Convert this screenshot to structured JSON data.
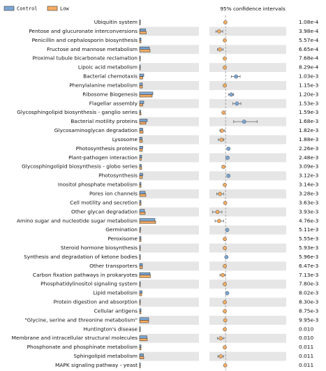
{
  "chart_data": {
    "type": "extended_error_bar",
    "title": "95% confidence intervals",
    "categories": [
      "Ubiquitin system",
      "Pentose and glucuronate interconversions",
      "Penicillin and cephalosporin biosynthesis",
      "Fructose and mannose metabolism",
      "Proximal tubule bicarbonate reclamation",
      "Lipoic acid metabolism",
      "Bacterial chemotaxis",
      "Phenylalanine metabolism",
      "Ribosome Biogenesis",
      "Flagellar assembly",
      "Glycosphingolipid biosynthesis - ganglio series",
      "Bacterial motility proteins",
      "Glycosaminoglycan degradation",
      "Lysosome",
      "Photosynthesis proteins",
      "Plant-pathogen interaction",
      "Glycosphingolipid biosynthesis - globo series",
      "Photosynthesis",
      "Inositol phosphate metabolism",
      "Pores ion channels",
      "Cell motility and secretion",
      "Other glycan degradation",
      "Amino sugar and nucleotide sugar metabolism",
      "Germination",
      "Peroxisome",
      "Steroid hormone biosynthesis",
      "Synthesis and degradation of ketone bodies",
      "Other transporters",
      "Carbon fixation pathways in prokaryotes",
      "Phosphatidylinositol signaling system",
      "Lipid metabolism",
      "Protein digestion and absorption",
      "Cellular antigens",
      "\"Glycine, serine and threonine metabolism\"",
      "Huntington's disease",
      "Membrane and intracellular structural molecules",
      "Phosphonate and phosphinate metabolism",
      "Sphingolipid metabolism",
      "MAPK signaling pathway - yeast"
    ],
    "series": [
      {
        "name": "Control",
        "color": "#7ba7d6",
        "values": [
          0.1,
          0.85,
          0.2,
          1.4,
          0.1,
          0.1,
          0.6,
          0.4,
          1.9,
          0.6,
          0.15,
          1.1,
          0.45,
          0.35,
          0.45,
          0.3,
          0.25,
          0.45,
          0.2,
          0.8,
          0.2,
          0.7,
          2.2,
          0.15,
          0.2,
          0.1,
          0.1,
          0.4,
          1.5,
          0.1,
          0.35,
          0.1,
          0.2,
          1.3,
          0.1,
          1.05,
          0.2,
          0.55,
          0.1
        ]
      },
      {
        "name": "Low",
        "color": "#f5ad63",
        "values": [
          0.1,
          0.95,
          0.2,
          1.5,
          0.1,
          0.1,
          0.45,
          0.4,
          1.8,
          0.45,
          0.2,
          0.9,
          0.5,
          0.4,
          0.4,
          0.25,
          0.3,
          0.4,
          0.2,
          0.9,
          0.2,
          0.8,
          2.3,
          0.1,
          0.2,
          0.1,
          0.1,
          0.4,
          1.55,
          0.1,
          0.3,
          0.1,
          0.2,
          1.3,
          0.1,
          1.1,
          0.2,
          0.6,
          0.1
        ]
      }
    ],
    "xlim": [
      0,
      8.5
    ],
    "difference": {
      "values": [
        -0.003,
        -0.08,
        -0.01,
        -0.07,
        -0.01,
        -0.01,
        0.13,
        -0.01,
        0.07,
        0.14,
        -0.025,
        0.23,
        -0.045,
        -0.05,
        0.035,
        0.025,
        -0.025,
        0.035,
        -0.01,
        -0.07,
        -0.005,
        -0.1,
        -0.08,
        0.02,
        -0.01,
        -0.01,
        0.01,
        -0.01,
        -0.035,
        -0.01,
        0.02,
        -0.01,
        -0.01,
        -0.005,
        -0.01,
        -0.06,
        -0.01,
        -0.06,
        -0.005
      ],
      "ci_low": [
        -0.008,
        -0.12,
        -0.015,
        -0.1,
        -0.015,
        -0.015,
        0.07,
        -0.015,
        0.035,
        0.09,
        -0.04,
        0.1,
        -0.07,
        -0.09,
        0.02,
        0.015,
        -0.045,
        0.02,
        -0.015,
        -0.11,
        -0.01,
        -0.16,
        -0.13,
        0.01,
        -0.015,
        -0.015,
        0.003,
        -0.015,
        -0.07,
        -0.015,
        0.01,
        -0.015,
        -0.015,
        -0.01,
        -0.015,
        -0.1,
        -0.015,
        -0.095,
        -0.01
      ],
      "ci_high": [
        0.002,
        -0.035,
        -0.005,
        -0.03,
        -0.005,
        -0.005,
        0.18,
        -0.005,
        0.1,
        0.19,
        -0.01,
        0.39,
        -0.01,
        -0.02,
        0.05,
        0.035,
        -0.01,
        0.05,
        -0.005,
        -0.025,
        0.0,
        -0.045,
        -0.025,
        0.03,
        -0.005,
        -0.005,
        0.017,
        -0.005,
        -0.003,
        -0.005,
        0.03,
        -0.005,
        -0.005,
        0.0,
        -0.005,
        -0.02,
        -0.005,
        -0.025,
        0.0
      ]
    },
    "diff_xlim": [
      -0.2,
      0.75
    ],
    "p_values": [
      {
        "value": 0.000108,
        "label": "1.08e-4"
      },
      {
        "value": 0.000398,
        "label": "3.98e-4"
      },
      {
        "value": 0.000557,
        "label": "5.57e-4"
      },
      {
        "value": 0.000665,
        "label": "6.65e-4"
      },
      {
        "value": 0.000768,
        "label": "7.68e-4"
      },
      {
        "value": 0.000829,
        "label": "8.29e-4"
      },
      {
        "value": 0.00103,
        "label": "1.03e-3"
      },
      {
        "value": 0.00115,
        "label": "1.15e-3"
      },
      {
        "value": 0.0012,
        "label": "1.20e-3"
      },
      {
        "value": 0.00153,
        "label": "1.53e-3"
      },
      {
        "value": 0.00159,
        "label": "1.59e-3"
      },
      {
        "value": 0.00168,
        "label": "1.68e-3"
      },
      {
        "value": 0.00182,
        "label": "1.82e-3"
      },
      {
        "value": 0.00188,
        "label": "1.88e-3"
      },
      {
        "value": 0.00226,
        "label": "2.26e-3"
      },
      {
        "value": 0.00248,
        "label": "2.48e-3"
      },
      {
        "value": 0.00309,
        "label": "3.09e-3"
      },
      {
        "value": 0.00312,
        "label": "3.12e-3"
      },
      {
        "value": 0.00314,
        "label": "3.14e-3"
      },
      {
        "value": 0.00328,
        "label": "3.28e-3"
      },
      {
        "value": 0.00363,
        "label": "3.63e-3"
      },
      {
        "value": 0.00393,
        "label": "3.93e-3"
      },
      {
        "value": 0.00476,
        "label": "4.76e-3"
      },
      {
        "value": 0.00511,
        "label": "5.11e-3"
      },
      {
        "value": 0.00555,
        "label": "5.55e-3"
      },
      {
        "value": 0.00593,
        "label": "5.93e-3"
      },
      {
        "value": 0.00596,
        "label": "5.96e-3"
      },
      {
        "value": 0.00647,
        "label": "6.47e-3"
      },
      {
        "value": 0.00713,
        "label": "7.13e-3"
      },
      {
        "value": 0.0078,
        "label": "7.80e-3"
      },
      {
        "value": 0.00802,
        "label": "8.02e-3"
      },
      {
        "value": 0.0083,
        "label": "8.30e-3"
      },
      {
        "value": 0.00875,
        "label": "8.75e-3"
      },
      {
        "value": 0.00995,
        "label": "9.95e-3"
      },
      {
        "value": 0.01,
        "label": "0.010"
      },
      {
        "value": 0.01,
        "label": "0.010"
      },
      {
        "value": 0.011,
        "label": "0.011"
      },
      {
        "value": 0.011,
        "label": "0.011"
      },
      {
        "value": 0.011,
        "label": "0.011"
      }
    ]
  }
}
